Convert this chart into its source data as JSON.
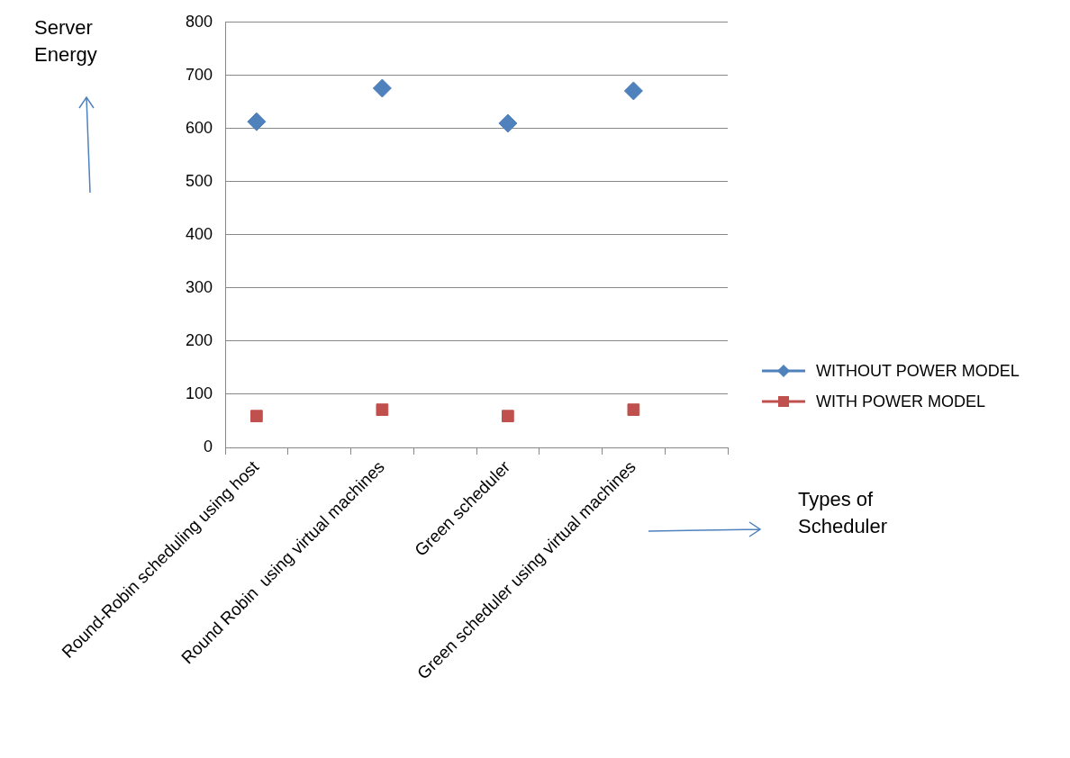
{
  "chart_data": {
    "type": "scatter",
    "xlabel": "Types of Scheduler",
    "ylabel": "Server Energy",
    "categories": [
      "Round-Robin scheduling using host",
      null,
      "Round Robin  using virtual machines",
      null,
      "Green scheduler",
      null,
      "Green scheduler using virtual machines",
      null
    ],
    "series": [
      {
        "name": "WITHOUT POWER MODEL",
        "color": "#4f81bd",
        "marker": "diamond",
        "values": [
          613,
          null,
          676,
          null,
          610,
          null,
          671,
          null
        ]
      },
      {
        "name": "WITH POWER MODEL",
        "color": "#c0504d",
        "marker": "square",
        "values": [
          59,
          null,
          71,
          null,
          59,
          null,
          71,
          null
        ]
      }
    ],
    "ylim": [
      0,
      800
    ],
    "yticks": [
      0,
      100,
      200,
      300,
      400,
      500,
      600,
      700,
      800
    ],
    "grid": "y",
    "legend": "right"
  }
}
